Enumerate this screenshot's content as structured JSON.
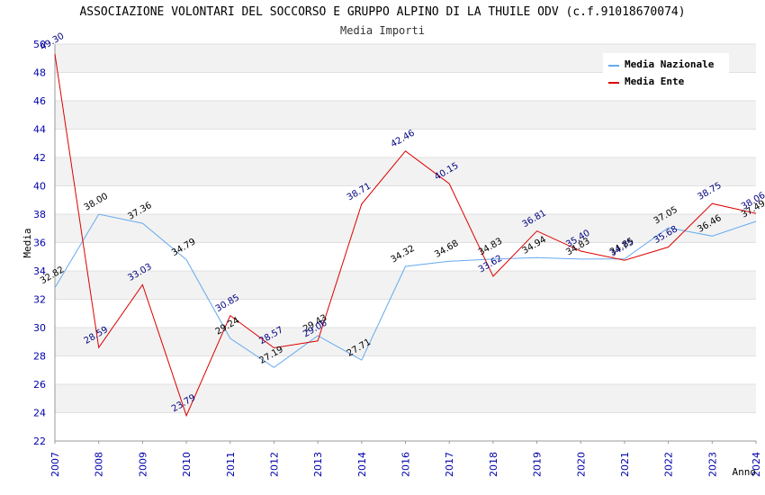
{
  "title": "ASSOCIAZIONE VOLONTARI DEL SOCCORSO E GRUPPO ALPINO DI LA THUILE ODV (c.f.91018670074)",
  "subtitle": "Media Importi",
  "chart_data": {
    "type": "line",
    "title": "ASSOCIAZIONE VOLONTARI DEL SOCCORSO E GRUPPO ALPINO DI LA THUILE ODV (c.f.91018670074)",
    "subtitle": "Media Importi",
    "xlabel": "Anno",
    "ylabel": "Media",
    "ylim": [
      22,
      50
    ],
    "yticks": [
      22,
      24,
      26,
      28,
      30,
      32,
      34,
      36,
      38,
      40,
      42,
      44,
      46,
      48,
      50
    ],
    "categories": [
      "2007",
      "2008",
      "2009",
      "2010",
      "2011",
      "2012",
      "2013",
      "2014",
      "2016",
      "2017",
      "2018",
      "2019",
      "2020",
      "2021",
      "2022",
      "2023",
      "2024"
    ],
    "legend_position": "top-right",
    "series": [
      {
        "name": "Media Nazionale",
        "color": "#66aaee",
        "values": [
          32.82,
          38.0,
          37.36,
          34.79,
          29.24,
          27.19,
          29.43,
          27.71,
          34.32,
          34.68,
          34.83,
          34.94,
          34.83,
          34.85,
          37.05,
          36.46,
          37.49
        ],
        "labels": [
          "32.82",
          "38.00",
          "37.36",
          "34.79",
          "29.24",
          "27.19",
          "29.43",
          "27.71",
          "34.32",
          "34.68",
          "34.83",
          "34.94",
          "34.83",
          "34.85",
          "37.05",
          "36.46",
          "37.49"
        ]
      },
      {
        "name": "Media Ente",
        "color": "#dd0000",
        "values": [
          49.3,
          28.59,
          33.03,
          23.79,
          30.85,
          28.57,
          29.06,
          38.71,
          42.46,
          40.15,
          33.62,
          36.81,
          35.4,
          34.75,
          35.68,
          38.75,
          38.06
        ],
        "labels": [
          "49.30",
          "28.59",
          "33.03",
          "23.79",
          "30.85",
          "28.57",
          "29.06",
          "38.71",
          "42.46",
          "40.15",
          "33.62",
          "36.81",
          "35.40",
          "34.75",
          "35.68",
          "38.75",
          "38.06"
        ]
      }
    ]
  }
}
